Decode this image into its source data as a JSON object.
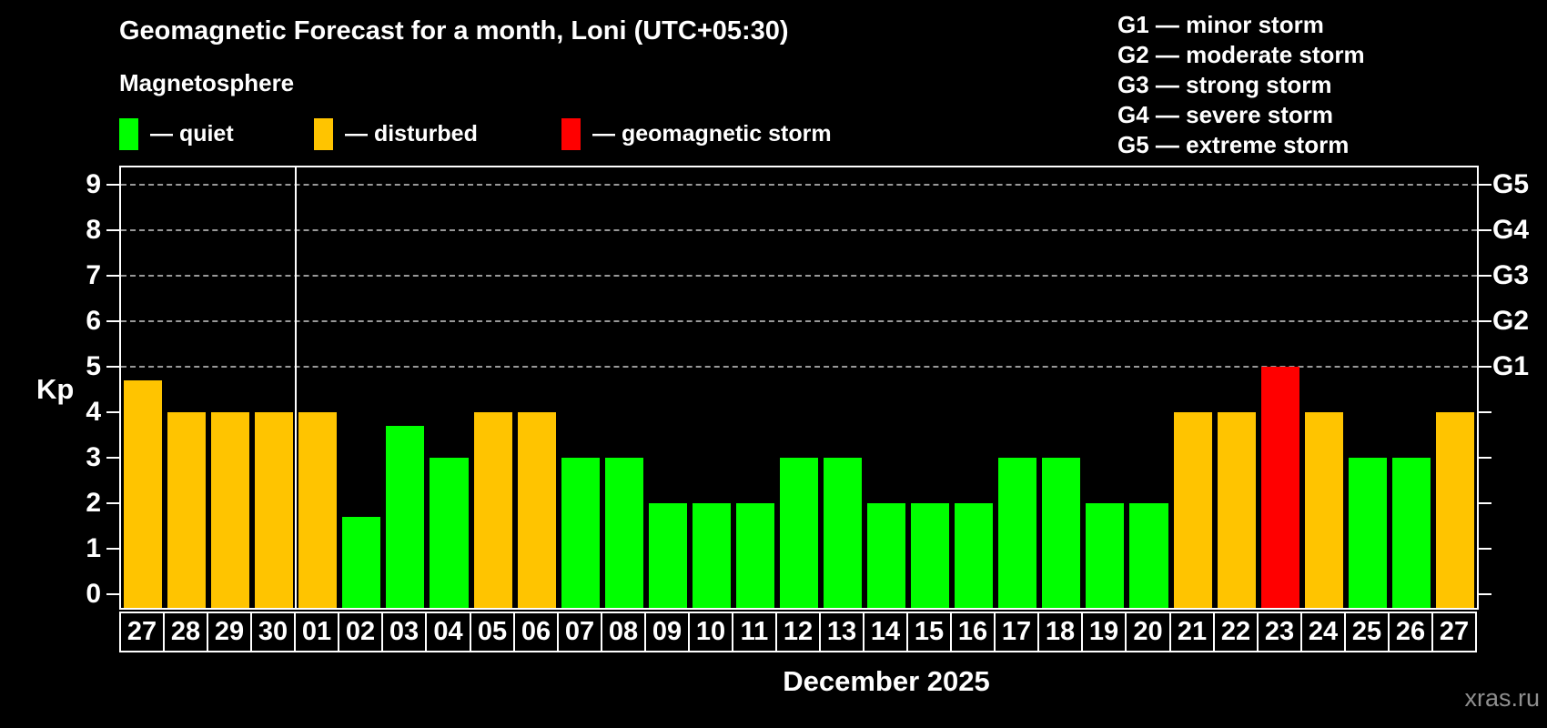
{
  "header": {
    "title": "Geomagnetic Forecast for a month, Loni (UTC+05:30)",
    "subtitle": "Magnetosphere",
    "legend": [
      {
        "status": "quiet",
        "label": "— quiet",
        "color": "#00ff00"
      },
      {
        "status": "disturbed",
        "label": "— disturbed",
        "color": "#ffc400"
      },
      {
        "status": "storm",
        "label": "— geomagnetic storm",
        "color": "#ff0000"
      }
    ],
    "g_scale_legend": [
      "G1 — minor storm",
      "G2 — moderate storm",
      "G3 — strong storm",
      "G4 — severe storm",
      "G5 — extreme storm"
    ]
  },
  "chart_data": {
    "type": "bar",
    "title": "Geomagnetic Forecast for a month, Loni (UTC+05:30)",
    "ylabel": "Kp",
    "xlabel": "December 2025",
    "ylim": [
      0,
      9.4
    ],
    "yticks": [
      0,
      1,
      2,
      3,
      4,
      5,
      6,
      7,
      8,
      9
    ],
    "grid": "dashed horizontal lines at Kp 5-9 only",
    "legend_position": "top",
    "g_levels": [
      {
        "kp": 5,
        "label": "G1"
      },
      {
        "kp": 6,
        "label": "G2"
      },
      {
        "kp": 7,
        "label": "G3"
      },
      {
        "kp": 8,
        "label": "G4"
      },
      {
        "kp": 9,
        "label": "G5"
      }
    ],
    "month_separator_after_index": 3,
    "categories": [
      "27",
      "28",
      "29",
      "30",
      "01",
      "02",
      "03",
      "04",
      "05",
      "06",
      "07",
      "08",
      "09",
      "10",
      "11",
      "12",
      "13",
      "14",
      "15",
      "16",
      "17",
      "18",
      "19",
      "20",
      "21",
      "22",
      "23",
      "24",
      "25",
      "26",
      "27"
    ],
    "bars": [
      {
        "day": "27",
        "kp": 4.7,
        "status": "disturbed"
      },
      {
        "day": "28",
        "kp": 4,
        "status": "disturbed"
      },
      {
        "day": "29",
        "kp": 4,
        "status": "disturbed"
      },
      {
        "day": "30",
        "kp": 4,
        "status": "disturbed"
      },
      {
        "day": "01",
        "kp": 4,
        "status": "disturbed"
      },
      {
        "day": "02",
        "kp": 1.7,
        "status": "quiet"
      },
      {
        "day": "03",
        "kp": 3.7,
        "status": "quiet"
      },
      {
        "day": "04",
        "kp": 3,
        "status": "quiet"
      },
      {
        "day": "05",
        "kp": 4,
        "status": "disturbed"
      },
      {
        "day": "06",
        "kp": 4,
        "status": "disturbed"
      },
      {
        "day": "07",
        "kp": 3,
        "status": "quiet"
      },
      {
        "day": "08",
        "kp": 3,
        "status": "quiet"
      },
      {
        "day": "09",
        "kp": 2,
        "status": "quiet"
      },
      {
        "day": "10",
        "kp": 2,
        "status": "quiet"
      },
      {
        "day": "11",
        "kp": 2,
        "status": "quiet"
      },
      {
        "day": "12",
        "kp": 3,
        "status": "quiet"
      },
      {
        "day": "13",
        "kp": 3,
        "status": "quiet"
      },
      {
        "day": "14",
        "kp": 2,
        "status": "quiet"
      },
      {
        "day": "15",
        "kp": 2,
        "status": "quiet"
      },
      {
        "day": "16",
        "kp": 2,
        "status": "quiet"
      },
      {
        "day": "17",
        "kp": 3,
        "status": "quiet"
      },
      {
        "day": "18",
        "kp": 3,
        "status": "quiet"
      },
      {
        "day": "19",
        "kp": 2,
        "status": "quiet"
      },
      {
        "day": "20",
        "kp": 2,
        "status": "quiet"
      },
      {
        "day": "21",
        "kp": 4,
        "status": "disturbed"
      },
      {
        "day": "22",
        "kp": 4,
        "status": "disturbed"
      },
      {
        "day": "23",
        "kp": 5,
        "status": "storm"
      },
      {
        "day": "24",
        "kp": 4,
        "status": "disturbed"
      },
      {
        "day": "25",
        "kp": 3,
        "status": "quiet"
      },
      {
        "day": "26",
        "kp": 3,
        "status": "quiet"
      },
      {
        "day": "27",
        "kp": 4,
        "status": "disturbed"
      }
    ]
  },
  "colors": {
    "quiet": "#00ff00",
    "disturbed": "#ffc400",
    "storm": "#ff0000",
    "background": "#000000",
    "axis": "#ffffff",
    "gridline": "#999999",
    "watermark_text": "#8f8f8f"
  },
  "footer": {
    "month_label": "December 2025",
    "watermark": "xras.ru"
  }
}
